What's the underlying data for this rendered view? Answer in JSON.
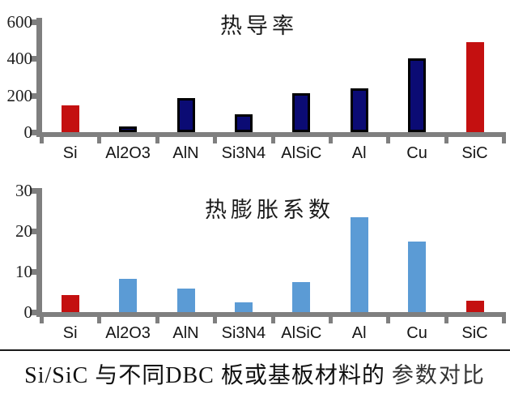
{
  "figure": {
    "caption_serif": "Si/SiC 与不同DBC 板或基板材料的",
    "caption_sans": "参数对比"
  },
  "colors": {
    "red": "#c41010",
    "navy": "#0b0b74",
    "navy_border": "#000000",
    "blue": "#5b9bd5",
    "axis": "#7f7f7f",
    "text": "#1a1a1a"
  },
  "chart_data": [
    {
      "type": "bar",
      "title": "热导率",
      "categories": [
        "Si",
        "Al2O3",
        "AlN",
        "Si3N4",
        "AlSiC",
        "Al",
        "Cu",
        "SiC"
      ],
      "values": [
        145,
        30,
        185,
        95,
        210,
        240,
        400,
        490
      ],
      "bar_colors": [
        "red",
        "navy",
        "navy",
        "navy",
        "navy",
        "navy",
        "navy",
        "red"
      ],
      "ylim": [
        0,
        600
      ],
      "yticks": [
        0,
        200,
        400,
        600
      ],
      "xlabel": "",
      "ylabel": "",
      "grid": false,
      "legend_position": "none"
    },
    {
      "type": "bar",
      "title": "热膨胀系数",
      "categories": [
        "Si",
        "Al2O3",
        "AlN",
        "Si3N4",
        "AlSiC",
        "Al",
        "Cu",
        "SiC"
      ],
      "values": [
        4.2,
        8.2,
        5.8,
        2.5,
        7.5,
        23.5,
        17.5,
        2.8
      ],
      "bar_colors": [
        "red",
        "blue",
        "blue",
        "blue",
        "blue",
        "blue",
        "blue",
        "red"
      ],
      "ylim": [
        0,
        30
      ],
      "yticks": [
        0,
        10,
        20,
        30
      ],
      "xlabel": "",
      "ylabel": "",
      "grid": false,
      "legend_position": "none"
    }
  ]
}
